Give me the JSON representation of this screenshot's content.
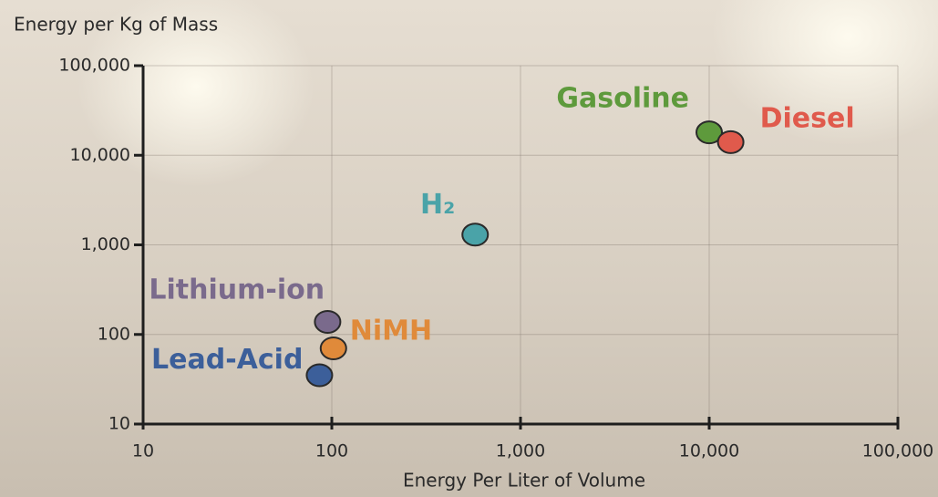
{
  "chart_data": {
    "type": "scatter",
    "xlabel": "Energy Per Liter of Volume",
    "ylabel": "Energy per Kg of Mass",
    "xscale": "log",
    "yscale": "log",
    "grid": true,
    "xlim": [
      10,
      100000
    ],
    "ylim": [
      10,
      100000
    ],
    "xticks": [
      10,
      100,
      {
        "value": 1000,
        "label": "1,000"
      },
      {
        "value": 10000,
        "label": "10,000"
      },
      {
        "value": 100000,
        "label": "100,000"
      }
    ],
    "yticks": [
      10,
      100,
      {
        "value": 1000,
        "label": "1,000"
      },
      {
        "value": 10000,
        "label": "10,000"
      },
      {
        "value": 100000,
        "label": "100,000"
      }
    ],
    "series": [
      {
        "name": "Gasoline",
        "color": "#5e9a3c",
        "x": [
          10000
        ],
        "values": [
          18000
        ]
      },
      {
        "name": "Diesel",
        "color": "#e05a4c",
        "x": [
          13000
        ],
        "values": [
          14000
        ]
      },
      {
        "name": "H₂",
        "color": "#4aa3a8",
        "x": [
          575
        ],
        "values": [
          1300
        ]
      },
      {
        "name": "Lithium-ion",
        "color": "#7a6a8c",
        "x": [
          95
        ],
        "values": [
          138
        ]
      },
      {
        "name": "NiMH",
        "color": "#e08a3a",
        "x": [
          102
        ],
        "values": [
          70
        ]
      },
      {
        "name": "Lead-Acid",
        "color": "#3c5f9a",
        "x": [
          86
        ],
        "values": [
          35
        ]
      }
    ]
  }
}
